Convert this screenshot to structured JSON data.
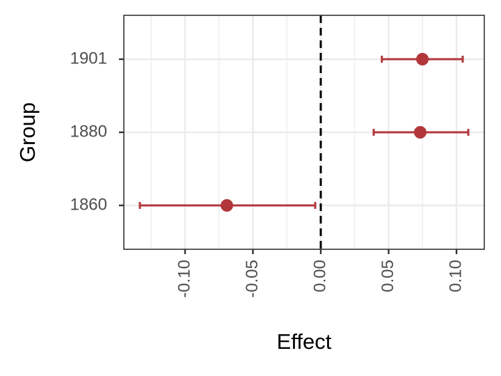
{
  "chart_data": {
    "type": "forest",
    "x_label": "Effect",
    "y_label": "Group",
    "categories": [
      "1860",
      "1880",
      "1901"
    ],
    "values": [
      -0.0692,
      0.0733,
      0.0749
    ],
    "lower": [
      -0.1333,
      0.039,
      0.045
    ],
    "upper": [
      -0.0041,
      0.1087,
      0.1046
    ],
    "color": "#b2373b",
    "xlim": [
      -0.1451,
      0.1205
    ],
    "xticks": [
      {
        "value": -0.1,
        "label": "-0.10"
      },
      {
        "value": -0.05,
        "label": "-0.05"
      },
      {
        "value": 0,
        "label": "0.00"
      },
      {
        "value": 0.05,
        "label": "0.05"
      },
      {
        "value": 0.1,
        "label": "0.10"
      }
    ],
    "xintercept": 0,
    "grid": true
  }
}
